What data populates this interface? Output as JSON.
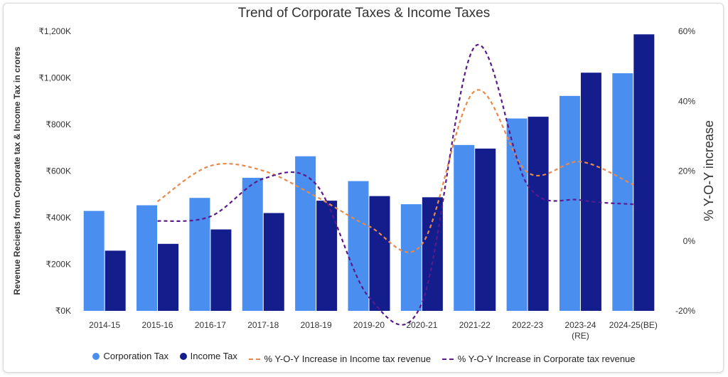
{
  "chart_data": {
    "type": "bar",
    "title": "Trend of Corporate Taxes & Income Taxes",
    "categories": [
      "2014-15",
      "2015-16",
      "2016-17",
      "2017-18",
      "2018-19",
      "2019-20",
      "2020-21",
      "2021-22",
      "2022-23",
      "2023-24\n(RE)",
      "2024-25(BE)"
    ],
    "category_lines": [
      [
        "2014-15"
      ],
      [
        "2015-16"
      ],
      [
        "2016-17"
      ],
      [
        "2017-18"
      ],
      [
        "2018-19"
      ],
      [
        "2019-20"
      ],
      [
        "2020-21"
      ],
      [
        "2021-22"
      ],
      [
        "2022-23"
      ],
      [
        "2023-24",
        "(RE)"
      ],
      [
        "2024-25(BE)"
      ]
    ],
    "ylabel": "Revenue Reciepts from Corporate tax & Income Tax in crores",
    "y2label": "% Y-O-Y increase",
    "ylim": [
      0,
      1200000
    ],
    "y2lim": [
      -20,
      60
    ],
    "yticks": [
      "₹0K",
      "₹200K",
      "₹400K",
      "₹600K",
      "₹800K",
      "₹1,000K",
      "₹1,200K"
    ],
    "y2ticks": [
      "-20%",
      "0%",
      "20%",
      "40%",
      "60%"
    ],
    "series": [
      {
        "name": "Corporation Tax",
        "kind": "bar",
        "color": "#4a8ff0",
        "values": [
          428925,
          453228,
          484924,
          571202,
          663572,
          556876,
          457719,
          712037,
          825834,
          922675,
          1020000
        ]
      },
      {
        "name": "Income Tax",
        "kind": "bar",
        "color": "#131e8c",
        "values": [
          258374,
          287637,
          349503,
          419884,
          473003,
          492654,
          487560,
          696604,
          833260,
          1022325,
          1187000
        ]
      },
      {
        "name": "% Y-O-Y Increase in Income tax revenue",
        "kind": "line",
        "color": "#e8894a",
        "values": [
          null,
          11.3,
          21.5,
          20.1,
          12.7,
          4.2,
          -1.0,
          42.9,
          19.6,
          22.7,
          16.1
        ]
      },
      {
        "name": "% Y-O-Y Increase in Corporate tax revenue",
        "kind": "line",
        "color": "#5b1a8a",
        "values": [
          null,
          5.7,
          7.0,
          17.8,
          16.2,
          -16.1,
          -17.8,
          55.6,
          16.0,
          11.7,
          10.5
        ]
      }
    ],
    "legend_position": "bottom",
    "grid": false
  }
}
